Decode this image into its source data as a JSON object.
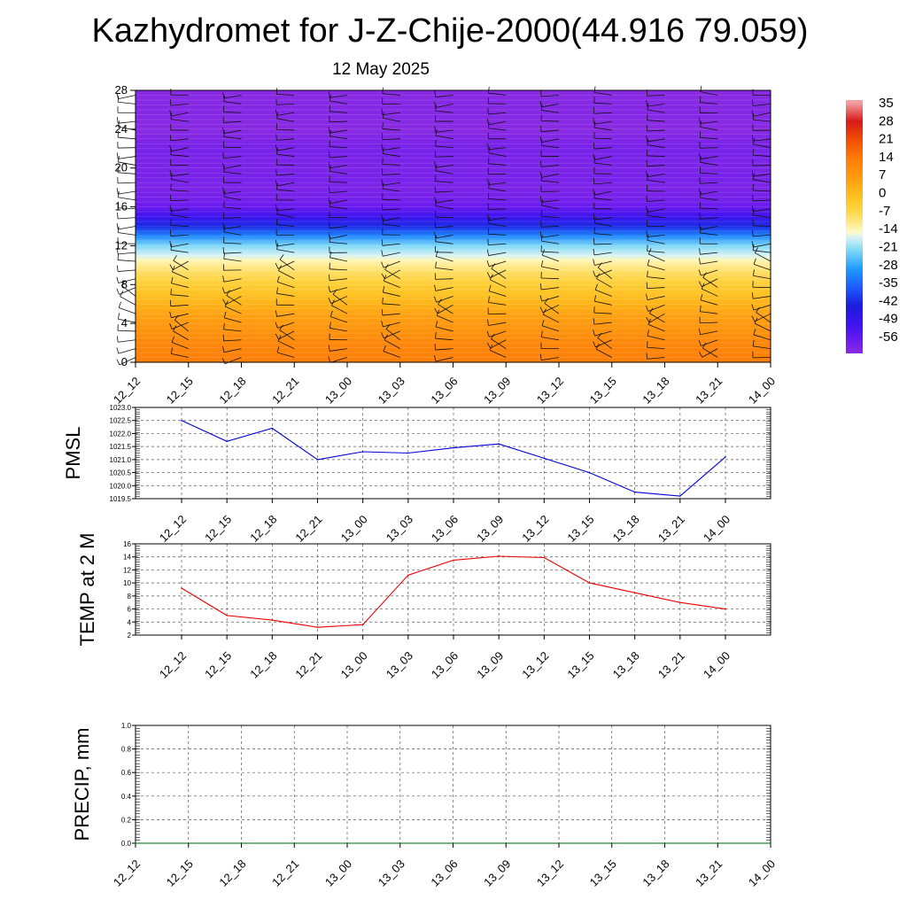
{
  "header": {
    "title": "Kazhydromet for J-Z-Chije-2000(44.916 79.059)",
    "date": "12 May 2025"
  },
  "chart_data": [
    {
      "type": "heatmap",
      "panel": "cross-section",
      "x_tick_labels": [
        "12_12",
        "12_15",
        "12_18",
        "12_21",
        "13_00",
        "13_03",
        "13_06",
        "13_09",
        "13_12",
        "13_15",
        "13_18",
        "13_21",
        "14_00"
      ],
      "y_tick_labels": [
        "0",
        "4",
        "8",
        "12",
        "16",
        "20",
        "24",
        "28"
      ],
      "ylim": [
        0,
        28
      ],
      "colorbar_labels": [
        "35",
        "28",
        "21",
        "14",
        "7",
        "0",
        "-7",
        "-14",
        "-21",
        "-28",
        "-35",
        "-42",
        "-49",
        "-56"
      ],
      "colorbar_range": [
        -60,
        36
      ],
      "colors": {
        "-60": "#8a2be2",
        "-55": "#6a1bf0",
        "-49": "#3d14ee",
        "-42": "#1b1bdc",
        "-35": "#1e5aff",
        "-28": "#1e9bff",
        "-21": "#7fd8f7",
        "-16": "#d8f3f5",
        "-14": "#fffbc8",
        "-10": "#ffe680",
        "-5": "#ffd23c",
        "0": "#ffbe1e",
        "7": "#ff9a10",
        "14": "#ff7a08",
        "21": "#f04e04",
        "28": "#d81a1a",
        "35": "#f2a0a0"
      },
      "profile_levels": [
        0,
        1,
        2,
        3,
        4,
        5,
        6,
        7,
        8,
        9,
        10,
        10.5,
        11,
        12,
        13,
        14,
        15,
        16,
        17,
        18,
        19,
        20,
        22,
        24,
        26,
        28
      ],
      "profile_values": [
        13,
        12,
        11,
        9,
        7,
        5,
        2,
        -1,
        -4,
        -7,
        -11,
        -13,
        -16,
        -21,
        -30,
        -40,
        -49,
        -55,
        -57,
        -58,
        -57,
        -58,
        -57,
        -60,
        -59,
        -60
      ],
      "wind_barbs": "present"
    },
    {
      "type": "line",
      "panel": "pmsl",
      "ylabel": "PMSL",
      "x": [
        "12_12",
        "12_15",
        "12_18",
        "12_21",
        "13_00",
        "13_03",
        "13_06",
        "13_09",
        "13_12",
        "13_15",
        "13_18",
        "13_21",
        "14_00"
      ],
      "series": [
        {
          "values": [
            1022.5,
            1021.7,
            1022.2,
            1021.0,
            1021.3,
            1021.25,
            1021.45,
            1021.6,
            1021.05,
            1020.5,
            1019.75,
            1019.6,
            1021.1
          ],
          "color": "#0000dd"
        }
      ],
      "ylim": [
        1019.5,
        1023.0
      ],
      "y_tick_labels": [
        "1023.0",
        "1022.5",
        "1022.0",
        "1021.5",
        "1021.0",
        "1020.5",
        "1020.0",
        "1019.5"
      ],
      "grid": true
    },
    {
      "type": "line",
      "panel": "temp",
      "ylabel": "TEMP at 2 M",
      "x": [
        "12_12",
        "12_15",
        "12_18",
        "12_21",
        "13_00",
        "13_03",
        "13_06",
        "13_09",
        "13_12",
        "13_15",
        "13_18",
        "13_21",
        "14_00"
      ],
      "series": [
        {
          "values": [
            9.2,
            5.0,
            4.3,
            3.2,
            3.6,
            11.2,
            13.5,
            14.1,
            13.9,
            10.0,
            8.5,
            7.0,
            6.0
          ],
          "color": "#ee0000"
        }
      ],
      "ylim": [
        2,
        16
      ],
      "y_tick_labels": [
        "16",
        "14",
        "12",
        "10",
        "8",
        "6",
        "4",
        "2"
      ],
      "grid": true
    },
    {
      "type": "line",
      "panel": "precip",
      "ylabel": "PRECIP, mm",
      "x": [
        "12_12",
        "12_15",
        "12_18",
        "12_21",
        "13_00",
        "13_03",
        "13_06",
        "13_09",
        "13_12",
        "13_15",
        "13_18",
        "13_21",
        "14_00"
      ],
      "series": [
        {
          "values": [
            0,
            0,
            0,
            0,
            0,
            0,
            0,
            0,
            0,
            0,
            0,
            0,
            0
          ],
          "color": "#006400"
        }
      ],
      "ylim": [
        0,
        1.0
      ],
      "y_tick_labels": [
        "1.0",
        "0.8",
        "0.6",
        "0.4",
        "0.2",
        "0.0"
      ],
      "grid": true
    }
  ]
}
